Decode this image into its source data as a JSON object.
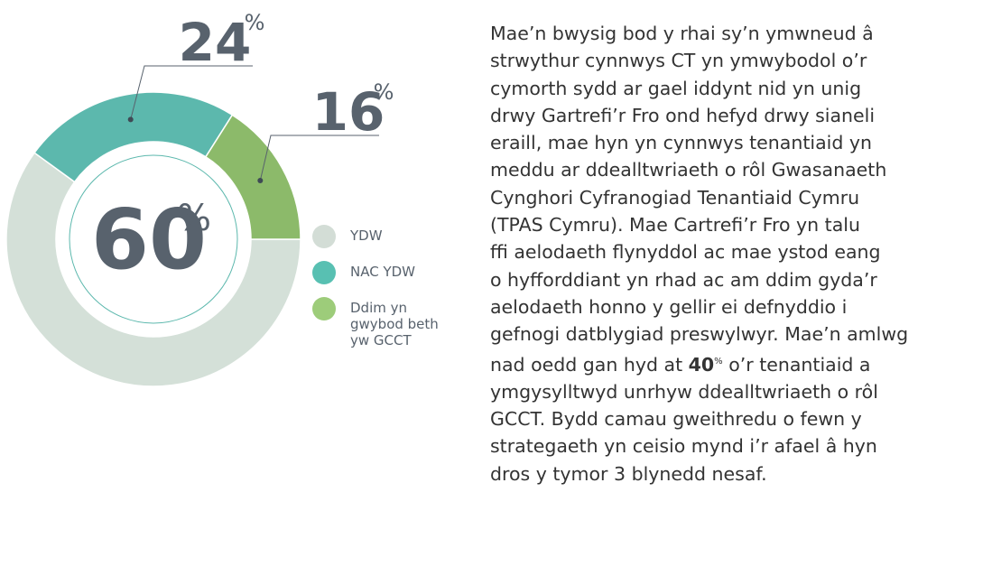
{
  "chart_data": {
    "type": "pie",
    "categories": [
      "YDW",
      "NAC YDW",
      "Ddim yn\ngwybod beth\nyw GCCT"
    ],
    "values": [
      60,
      24,
      16
    ],
    "unit": "%",
    "colors": [
      "#d4e0d8",
      "#5cb8ad",
      "#8cba6a"
    ],
    "legend_colors": [
      "#d3ddd6",
      "#58c0b2",
      "#9dcc7a"
    ],
    "start_angle": 90
  },
  "paragraph": {
    "lines": [
      "Mae’n bwysig bod y rhai sy’n ymwneud â",
      "strwythur cynnwys CT yn ymwybodol o’r",
      "cymorth sydd ar gael iddynt nid yn unig",
      "drwy Gartrefi’r Fro ond hefyd drwy sianeli",
      "eraill, mae hyn yn cynnwys tenantiaid yn",
      "meddu ar ddealltwriaeth o rôl Gwasanaeth",
      "Cynghori Cyfranogiad Tenantiaid Cymru",
      "(TPAS Cymru). Mae Cartrefi’r Fro yn talu",
      "ffi aelodaeth flynyddol ac mae ystod eang",
      "o hyfforddiant yn rhad ac am ddim gyda’r",
      "aelodaeth honno y gellir ei defnyddio i",
      "gefnogi datblygiad preswylwyr.  Mae’n amlwg",
      {
        "before": "nad oedd gan hyd at ",
        "bold": "40",
        "sup": "%",
        "after": " o’r tenantiaid a"
      },
      "ymgysylltwyd unrhyw ddealltwriaeth o rôl",
      "GCCT. Bydd camau gweithredu o fewn y",
      "strategaeth yn ceisio mynd i’r afael â hyn",
      "dros y tymor 3 blynedd nesaf."
    ]
  }
}
